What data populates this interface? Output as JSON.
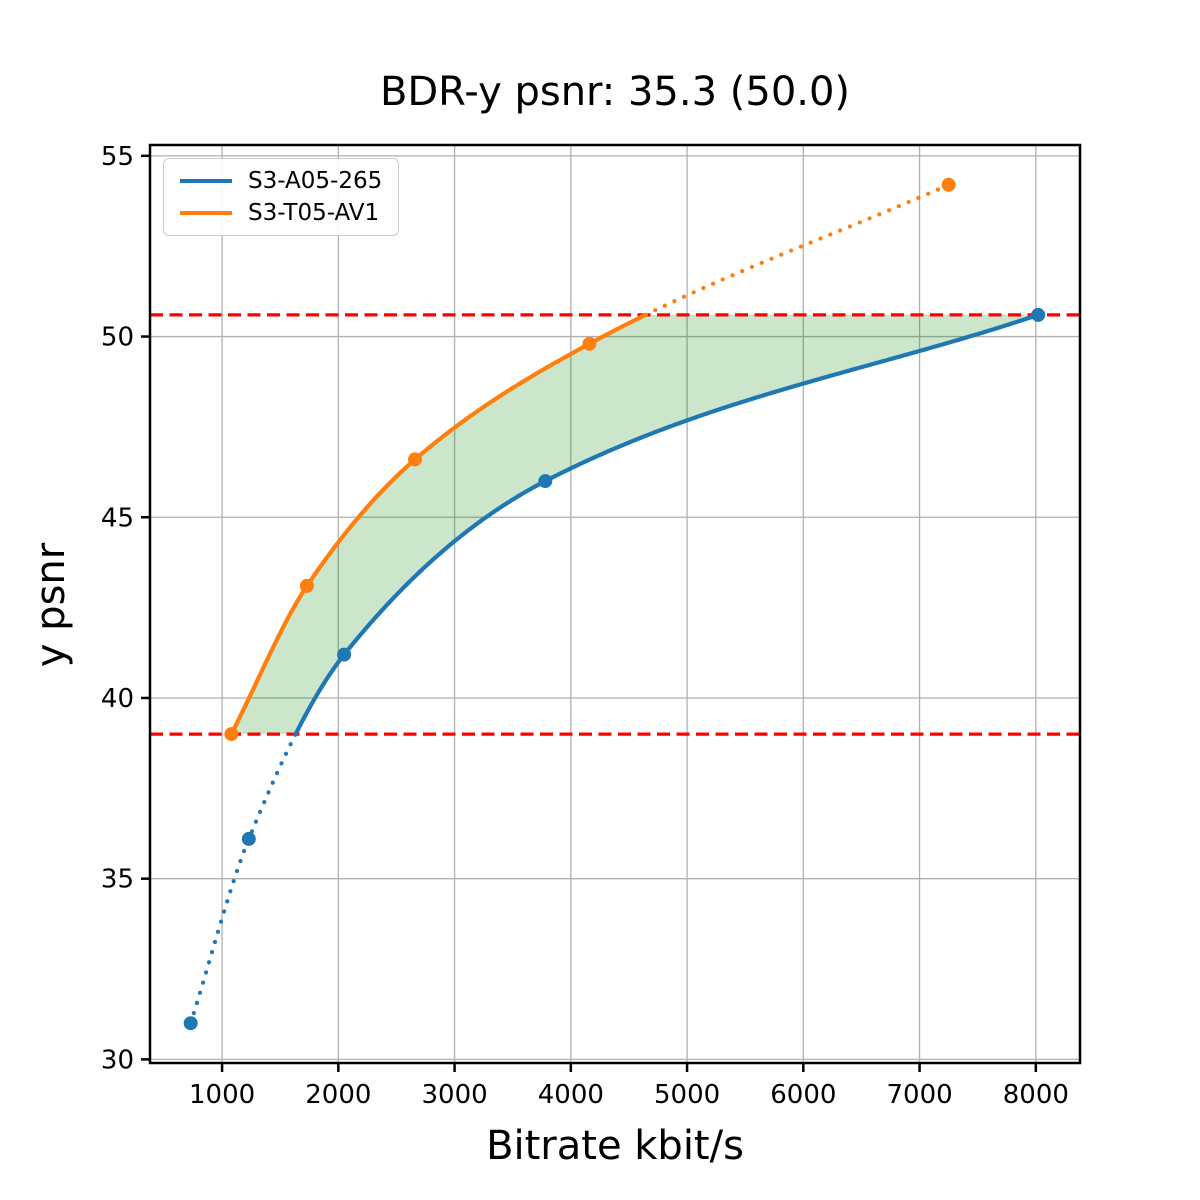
{
  "chart_data": {
    "type": "line",
    "title": "BDR-y psnr: 35.3 (50.0)",
    "xlabel": "Bitrate kbit/s",
    "ylabel": "y psnr",
    "xlim": [
      380,
      8380
    ],
    "ylim": [
      29.9,
      55.3
    ],
    "xticks": [
      1000,
      2000,
      3000,
      4000,
      5000,
      6000,
      7000,
      8000
    ],
    "yticks": [
      30,
      35,
      40,
      45,
      50,
      55
    ],
    "grid": true,
    "grid_color": "#b0b0b0",
    "legend_position": "upper left",
    "series": [
      {
        "name": "S3-A05-265",
        "color": "#1f77b4",
        "x": [
          730,
          1230,
          2050,
          3780,
          8020
        ],
        "y": [
          31.0,
          36.1,
          41.2,
          46.0,
          50.6
        ]
      },
      {
        "name": "S3-T05-AV1",
        "color": "#ff7f0e",
        "x": [
          1080,
          1730,
          2660,
          4160,
          7250
        ],
        "y": [
          39.0,
          43.1,
          46.6,
          49.8,
          54.2
        ]
      }
    ],
    "bd_interval_lines": {
      "lower": 39.0,
      "upper": 50.6,
      "color": "#ff0000",
      "style": "dashed"
    },
    "fill_between": {
      "upper_series": "S3-T05-AV1",
      "lower_series": "S3-A05-265",
      "interval": [
        39.0,
        50.6
      ],
      "color": "rgba(0, 128, 0, 0.2)"
    },
    "line_style_outside_interval": "dotted"
  }
}
